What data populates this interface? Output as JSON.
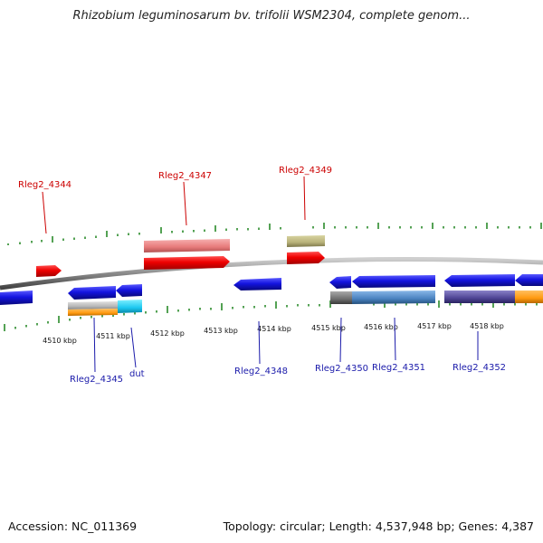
{
  "title": "Rhizobium leguminosarum bv. trifolii WSM2304, complete genom...",
  "footer": {
    "accession": "Accession: NC_011369",
    "summary": "Topology: circular; Length: 4,537,948 bp; Genes: 4,387"
  },
  "colors": {
    "forward": "#e00000",
    "reverse": "#1010d0",
    "label_forward": "#cc0000",
    "label_reverse": "#1a1aaa",
    "ticks": "#2a8a2a",
    "backbone": "#888888"
  },
  "axis": {
    "unit": "kbp",
    "ticks": [
      {
        "label": "4510 kbp"
      },
      {
        "label": "4511 kbp"
      },
      {
        "label": "4512 kbp"
      },
      {
        "label": "4513 kbp"
      },
      {
        "label": "4514 kbp"
      },
      {
        "label": "4515 kbp"
      },
      {
        "label": "4516 kbp"
      },
      {
        "label": "4517 kbp"
      },
      {
        "label": "4518 kbp"
      }
    ]
  },
  "genes": [
    {
      "label": "Rleg2_4344",
      "strand": "forward"
    },
    {
      "label": "Rleg2_4347",
      "strand": "forward"
    },
    {
      "label": "Rleg2_4349",
      "strand": "forward"
    },
    {
      "label": "Rleg2_4345",
      "strand": "reverse"
    },
    {
      "label": "dut",
      "strand": "reverse"
    },
    {
      "label": "Rleg2_4348",
      "strand": "reverse"
    },
    {
      "label": "Rleg2_4350",
      "strand": "reverse"
    },
    {
      "label": "Rleg2_4351",
      "strand": "reverse"
    },
    {
      "label": "Rleg2_4352",
      "strand": "reverse"
    }
  ]
}
